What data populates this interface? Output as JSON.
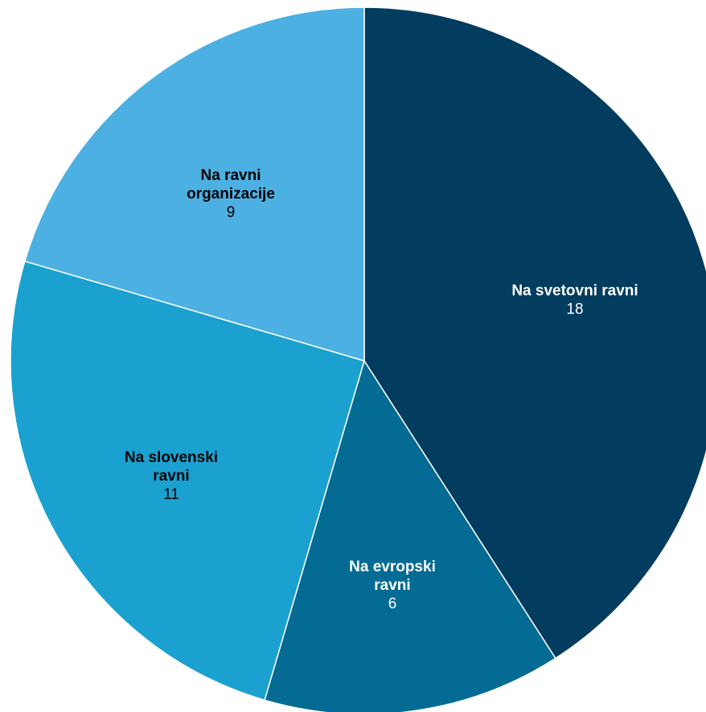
{
  "chart_data": {
    "type": "pie",
    "slices": [
      {
        "label_lines": [
          "Na svetovni ravni"
        ],
        "value": 18,
        "color": "#023c5f",
        "name_color": "#ffffff",
        "value_color": "#ffffff"
      },
      {
        "label_lines": [
          "Na evropski",
          "ravni"
        ],
        "value": 6,
        "color": "#036b94",
        "name_color": "#ffffff",
        "value_color": "#ffffff"
      },
      {
        "label_lines": [
          "Na slovenski",
          "ravni"
        ],
        "value": 11,
        "color": "#1aa1d0",
        "name_color": "#000000",
        "value_color": "#000000"
      },
      {
        "label_lines": [
          "Na ravni",
          "organizacije"
        ],
        "value": 9,
        "color": "#4db0e3",
        "name_color": "#000000",
        "value_color": "#000000"
      }
    ],
    "start": "12 o'clock",
    "direction": "clockwise",
    "legend": "none",
    "title": ""
  }
}
